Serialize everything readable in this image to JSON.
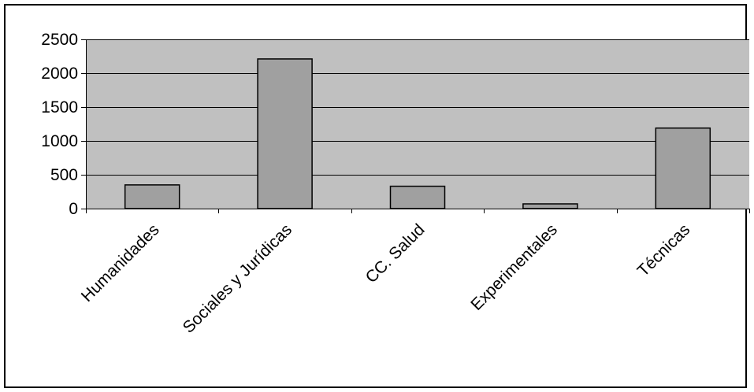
{
  "chart_data": {
    "type": "bar",
    "categories": [
      "Humanidades",
      "Sociales y Jurídicas",
      "CC. Salud",
      "Experimentales",
      "Técnicas"
    ],
    "values": [
      350,
      2210,
      330,
      70,
      1190
    ],
    "ylim": [
      0,
      2500
    ],
    "yticks": [
      0,
      500,
      1000,
      1500,
      2000,
      2500
    ],
    "grid": true,
    "legend": "none",
    "colors": {
      "plot_area": "#c0c0c0",
      "bar_fill": "#a0a0a0",
      "bar_stroke": "#000000",
      "gridline": "#000000"
    }
  }
}
